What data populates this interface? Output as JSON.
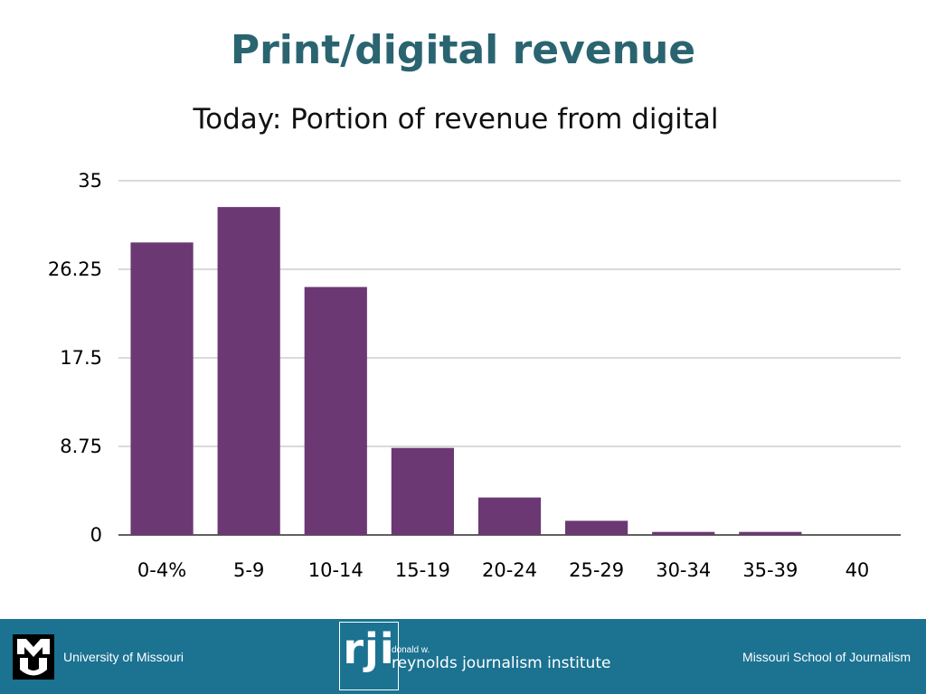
{
  "slide": {
    "title": "Print/digital revenue",
    "subtitle": "Today: Portion of revenue from digital"
  },
  "colors": {
    "title": "#2a6470",
    "bar": "#6b3874",
    "gridline": "#b5b5b5",
    "axis": "#000000",
    "footer": "#1b7291"
  },
  "chart_data": {
    "type": "bar",
    "categories": [
      "0-4%",
      "5-9",
      "10-14",
      "15-19",
      "20-24",
      "25-29",
      "30-34",
      "35-39",
      "40"
    ],
    "values": [
      28.9,
      32.4,
      24.5,
      8.6,
      3.7,
      1.4,
      0.3,
      0.3,
      0
    ],
    "y_ticks": [
      0,
      8.75,
      17.5,
      26.25,
      35
    ],
    "y_tick_labels": [
      "0",
      "8.75",
      "17.5",
      "26.25",
      "35"
    ],
    "ylim": [
      0,
      35
    ],
    "grid": true,
    "legend": "none"
  },
  "footer": {
    "left_text": "University of Missouri",
    "logo_letters": "rji",
    "logo_small_text": "donald w.",
    "logo_name": "reynolds journalism institute",
    "right_text": "Missouri School of Journalism",
    "left_logo_icon": "mu-logo-icon"
  }
}
